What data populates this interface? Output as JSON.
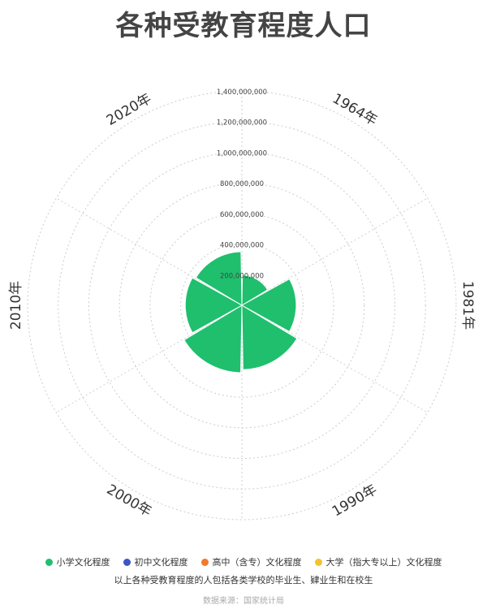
{
  "title": "各种受教育程度人口",
  "note": "以上各种受教育程度的人包括各类学校的毕业生、肄业生和在校生",
  "source": "数据来源：国家统计局",
  "chart_data": {
    "type": "polar-bar",
    "categories": [
      "1964年",
      "1981年",
      "1990年",
      "2000年",
      "2010年",
      "2020年"
    ],
    "radial_ticks": [
      "200,000,000",
      "400,000,000",
      "600,000,000",
      "800,000,000",
      "1,000,000,000",
      "1,200,000,000",
      "1,400,000,000"
    ],
    "rmax": 1400000000,
    "series": [
      {
        "name": "小学文化程度",
        "color": "#1fbf6e",
        "values": [
          196000000,
          355000000,
          420000000,
          440000000,
          370000000,
          350000000
        ]
      },
      {
        "name": "初中文化程度",
        "color": "#3b55c9",
        "values": [
          0,
          0,
          0,
          0,
          0,
          0
        ]
      },
      {
        "name": "高中（含专）文化程度",
        "color": "#f07b2d",
        "values": [
          0,
          0,
          0,
          0,
          0,
          0
        ]
      },
      {
        "name": "大学（指大专以上）文化程度",
        "color": "#f5c12e",
        "values": [
          0,
          0,
          0,
          0,
          0,
          0
        ]
      }
    ],
    "legend_position": "bottom",
    "grid": true
  }
}
